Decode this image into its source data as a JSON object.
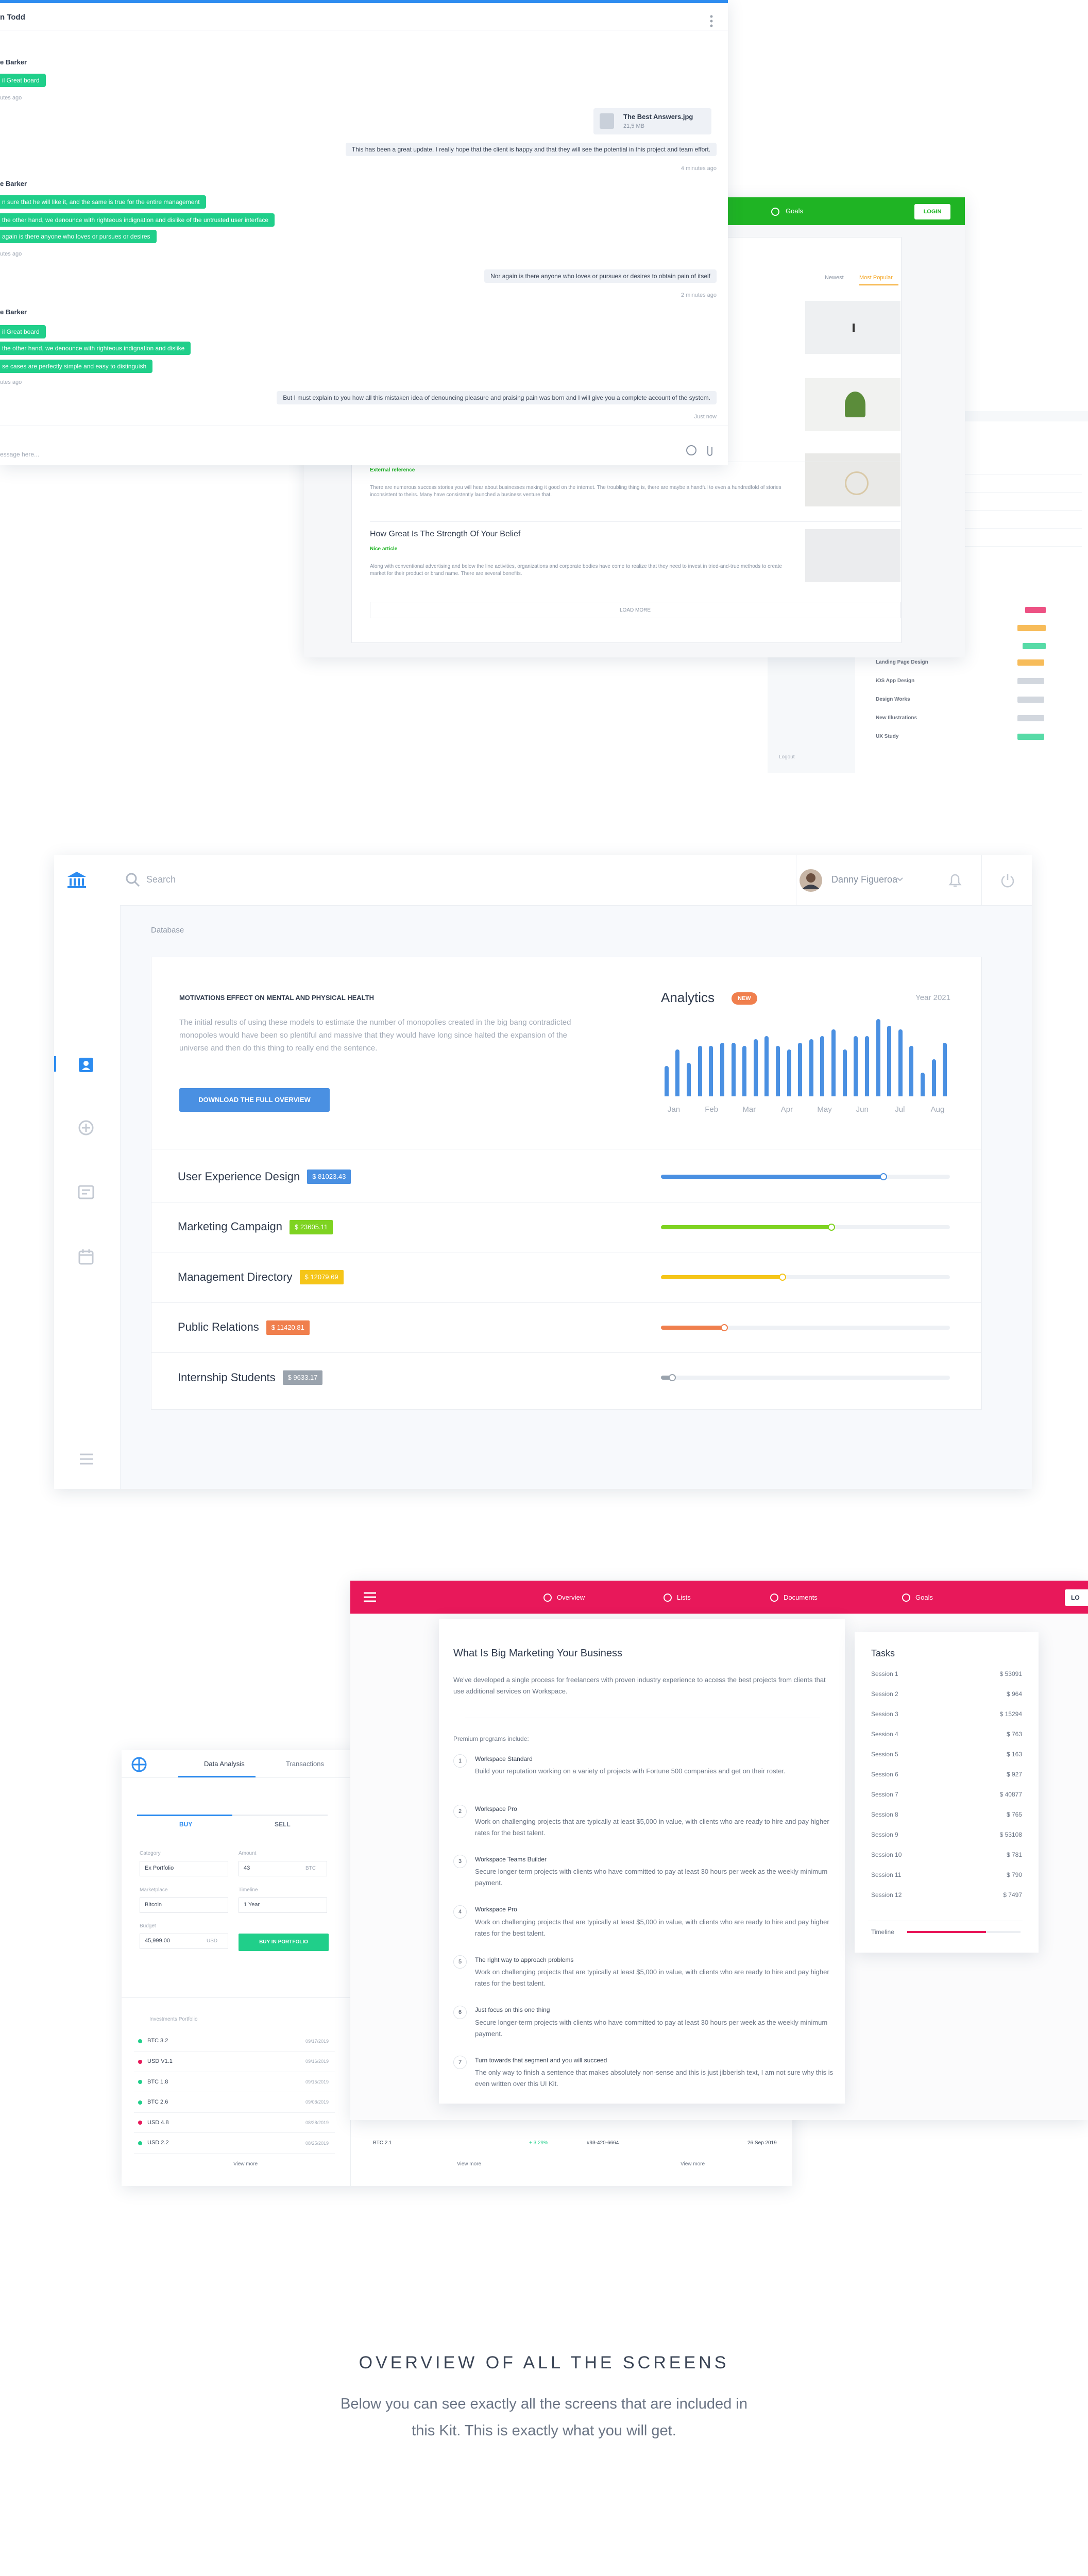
{
  "chat": {
    "contact": "n Todd",
    "messages": [
      {
        "side": "left",
        "sender": "e Barker",
        "bubbles": [
          "il Great board"
        ],
        "time": "utes ago"
      },
      {
        "side": "right",
        "file": {
          "name": "The Best Answers.jpg",
          "size": "21,5 MB"
        },
        "bubbles": [
          "This has been a great update, I really hope that the client is happy and that they will see the potential in this project and team effort."
        ],
        "time": "4 minutes ago"
      },
      {
        "side": "left",
        "sender": "e Barker",
        "bubbles": [
          "n sure that he will like it, and the same is true for the entire management",
          "the other hand, we denounce with righteous indignation and dislike of the untrusted user interface",
          "again is there anyone who loves or pursues or desires"
        ],
        "time": "utes ago"
      },
      {
        "side": "right",
        "bubbles": [
          "Nor again is there anyone who loves or pursues or desires to obtain pain of itself"
        ],
        "time": "2 minutes ago"
      },
      {
        "side": "left",
        "sender": "e Barker",
        "bubbles": [
          "il Great board",
          "the other hand, we denounce with righteous indignation and dislike",
          "se cases are perfectly simple and easy to distinguish"
        ],
        "time": "utes ago"
      },
      {
        "side": "right",
        "bubbles": [
          "But I must explain to you how all this mistaken idea of denouncing pleasure and praising pain was born and I will give you a complete account of the system."
        ],
        "time": "Just now"
      }
    ],
    "placeholder": "essage here..."
  },
  "blog": {
    "nav": "Goals",
    "login": "LOGIN",
    "tabs": [
      "Newest",
      "Most Popular"
    ],
    "items": [
      {
        "tag": "External reference",
        "text": "There are numerous success stories you will hear about businesses making it good on the internet. The troubling thing is, there are maybe a handful to even a hundredfold of stories inconsistent to theirs. Many have consistently launched a business venture that."
      },
      {
        "title": "How Great Is The Strength Of Your Belief",
        "tag": "Nice article",
        "text": "Along with conventional advertising and below the line activities, organizations and corporate bodies have come to realize that they need to invest in tried-and-true methods to create market for their product or brand name. There are several benefits."
      }
    ],
    "load_more": "LOAD MORE"
  },
  "projects": {
    "rows": [
      "Landing Page Design",
      "iOS App Design",
      "Design Works",
      "New Illustrations",
      "UX Study"
    ],
    "logout": "Logout"
  },
  "dashboard": {
    "search": "Search",
    "user": "Danny Figueroa",
    "section": "Database",
    "intro": {
      "title": "MOTIVATIONS EFFECT ON MENTAL AND PHYSICAL HEALTH",
      "text": "The initial results of using these models to estimate the number of monopolies created in the big bang contradicted monopoles would have been so plentiful and massive that they would have long since halted the expansion of the universe and then do this thing to really end the sentence.",
      "button": "DOWNLOAD THE FULL OVERVIEW"
    },
    "analytics": {
      "title": "Analytics",
      "badge": "NEW",
      "year": "Year 2021",
      "months": [
        "Jan",
        "Feb",
        "Mar",
        "Apr",
        "May",
        "Jun",
        "Jul",
        "Aug"
      ],
      "values": [
        18,
        28,
        20,
        30,
        30,
        32,
        32,
        30,
        34,
        36,
        30,
        28,
        32,
        34,
        36,
        40,
        28,
        36,
        36,
        46,
        42,
        40,
        30,
        14,
        22,
        32
      ]
    },
    "rows": [
      {
        "name": "User Experience Design",
        "amount": "$ 81023.43",
        "color": "#4a90e2",
        "progress": 77
      },
      {
        "name": "Marketing Campaign",
        "amount": "$ 23605.11",
        "color": "#7ed321",
        "progress": 59
      },
      {
        "name": "Management Directory",
        "amount": "$ 12079.69",
        "color": "#f5c518",
        "progress": 42
      },
      {
        "name": "Public Relations",
        "amount": "$ 11420.81",
        "color": "#f07f4d",
        "progress": 22
      },
      {
        "name": "Internship Students",
        "amount": "$ 9633.17",
        "color": "#9aa3ad",
        "progress": 4
      }
    ]
  },
  "trading": {
    "tabs": [
      "Data Analysis",
      "Transactions"
    ],
    "buy": "BUY",
    "sell": "SELL",
    "fields": [
      {
        "label": "Category",
        "value": "Ex Portfolio"
      },
      {
        "label": "Amount",
        "value": "43",
        "unit": "BTC"
      },
      {
        "label": "Marketplace",
        "value": "Bitcoin"
      },
      {
        "label": "Timeline",
        "value": "1 Year"
      },
      {
        "label": "Budget",
        "value": "45,999.00",
        "unit": "USD"
      }
    ],
    "button": "BUY IN PORTFOLIO",
    "list_title": "Investments Portfolio",
    "list": [
      {
        "name": "BTC 3.2",
        "date": "09/17/2019",
        "up": true
      },
      {
        "name": "USD V1.1",
        "date": "09/16/2019",
        "up": false
      },
      {
        "name": "BTC 1.8",
        "date": "09/15/2019",
        "up": true
      },
      {
        "name": "BTC 2.6",
        "date": "09/08/2019",
        "up": true
      },
      {
        "name": "USD 4.8",
        "date": "08/28/2019",
        "up": false
      },
      {
        "name": "USD 2.2",
        "date": "08/25/2019",
        "up": true
      }
    ],
    "transaction": [
      "BTC 2.1",
      "+ 3.29%",
      "#93-420-6664",
      "26 Sep 2019"
    ],
    "view_more": [
      "View more",
      "View more",
      "View more"
    ]
  },
  "marketing": {
    "nav": [
      "Overview",
      "Lists",
      "Documents",
      "Goals"
    ],
    "login": "LO",
    "title": "What Is Big Marketing Your Business",
    "intro": "We've developed a single process for freelancers with proven industry experience to access the best projects from clients that use additional services on Workspace.",
    "programs_label": "Premium programs include:",
    "programs": [
      {
        "number": "1",
        "title": "Workspace Standard",
        "text": "Build your reputation working on a variety of projects with Fortune 500 companies and get on their roster."
      },
      {
        "number": "2",
        "title": "Workspace Pro",
        "text": "Work on challenging projects that are typically at least $5,000 in value, with clients who are ready to hire and pay higher rates for the best talent."
      },
      {
        "number": "3",
        "title": "Workspace Teams Builder",
        "text": "Secure longer-term projects with clients who have committed to pay at least 30 hours per week as the weekly minimum payment."
      },
      {
        "number": "4",
        "title": "Workspace Pro",
        "text": "Work on challenging projects that are typically at least $5,000 in value, with clients who are ready to hire and pay higher rates for the best talent."
      },
      {
        "number": "5",
        "title": "The right way to approach problems",
        "text": "Work on challenging projects that are typically at least $5,000 in value, with clients who are ready to hire and pay higher rates for the best talent."
      },
      {
        "number": "6",
        "title": "Just focus on this one thing",
        "text": "Secure longer-term projects with clients who have committed to pay at least 30 hours per week as the weekly minimum payment."
      },
      {
        "number": "7",
        "title": "Turn towards that segment and you will succeed",
        "text": "The only way to finish a sentence that makes absolutely non-sense and this is just jibberish text, I am not sure why this is even written over this UI Kit."
      }
    ],
    "tasks_title": "Tasks",
    "tasks": [
      {
        "name": "Session 1",
        "value": "$ 53091"
      },
      {
        "name": "Session 2",
        "value": "$ 964"
      },
      {
        "name": "Session 3",
        "value": "$ 15294"
      },
      {
        "name": "Session 4",
        "value": "$ 763"
      },
      {
        "name": "Session 5",
        "value": "$ 163"
      },
      {
        "name": "Session 6",
        "value": "$ 927"
      },
      {
        "name": "Session 7",
        "value": "$ 40877"
      },
      {
        "name": "Session 8",
        "value": "$ 765"
      },
      {
        "name": "Session 9",
        "value": "$ 53108"
      },
      {
        "name": "Session 10",
        "value": "$ 781"
      },
      {
        "name": "Session 11",
        "value": "$ 790"
      },
      {
        "name": "Session 12",
        "value": "$ 7497"
      }
    ],
    "timeline": "Timeline"
  },
  "footer": {
    "title": "OVERVIEW OF ALL THE SCREENS",
    "text": "Below you can see exactly all the screens that are included in this Kit. This is exactly what you will get."
  }
}
